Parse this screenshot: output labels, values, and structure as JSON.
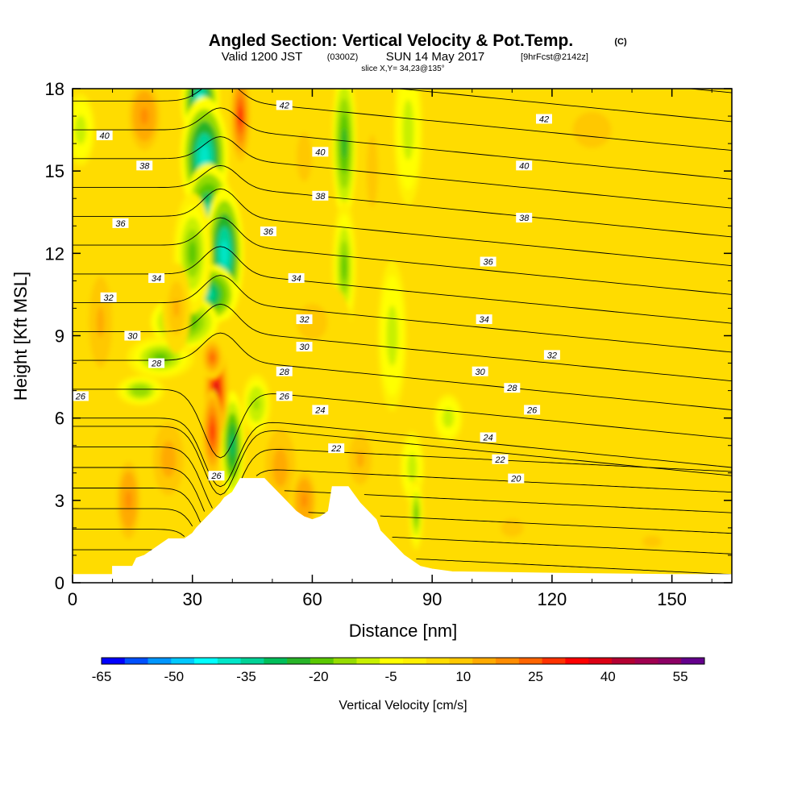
{
  "header": {
    "title": "Angled Section: Vertical Velocity & Pot.Temp.",
    "copyright": "(C)",
    "valid_prefix": "Valid 1200 JST",
    "valid_utc": "(0300Z)",
    "valid_date": "SUN 14 May 2017",
    "forecast_info": "[9hrFcst@2142z]",
    "slice_info": "slice X,Y= 34,23@135°"
  },
  "chart_data": {
    "type": "heatmap",
    "title": "Angled Section: Vertical Velocity & Pot.Temp.",
    "xlabel": "Distance [nm]",
    "ylabel": "Height [Kft MSL]",
    "xlim": [
      0,
      165
    ],
    "ylim": [
      0,
      18
    ],
    "x_ticks": [
      "0",
      "30",
      "60",
      "90",
      "120",
      "150"
    ],
    "y_ticks": [
      "0",
      "3",
      "6",
      "9",
      "12",
      "15",
      "18"
    ],
    "field_shaded": "Vertical Velocity [cm/s]",
    "field_contoured": "Potential Temperature",
    "background_value": 5,
    "colorbar": {
      "label": "Vertical Velocity [cm/s]",
      "tick_labels": [
        "-65",
        "-50",
        "-35",
        "-20",
        "-5",
        "10",
        "25",
        "40",
        "55"
      ],
      "levels": [
        -65,
        -60,
        -55,
        -50,
        -45,
        -40,
        -35,
        -30,
        -25,
        -20,
        -15,
        -10,
        -5,
        0,
        5,
        10,
        15,
        20,
        25,
        30,
        35,
        40,
        45,
        50,
        55,
        60
      ],
      "colors": [
        "#0000ff",
        "#0050ff",
        "#0096ff",
        "#00c8ff",
        "#00ffff",
        "#00e6c8",
        "#00d296",
        "#00be5a",
        "#28b428",
        "#5ac800",
        "#96dc00",
        "#c8f000",
        "#ffff00",
        "#fff000",
        "#ffdc00",
        "#ffc800",
        "#ffaa00",
        "#ff8c00",
        "#ff6400",
        "#ff3200",
        "#ff0000",
        "#dc0014",
        "#b40032",
        "#a00050",
        "#8c0064",
        "#64008c"
      ]
    },
    "terrain_kft": [
      [
        0,
        0.3
      ],
      [
        5,
        0.3
      ],
      [
        10,
        0.3
      ],
      [
        10,
        0.6
      ],
      [
        15,
        0.6
      ],
      [
        16,
        0.9
      ],
      [
        18,
        1.0
      ],
      [
        20,
        1.2
      ],
      [
        22,
        1.4
      ],
      [
        24,
        1.6
      ],
      [
        26,
        1.6
      ],
      [
        28,
        1.6
      ],
      [
        30,
        1.8
      ],
      [
        31,
        2.0
      ],
      [
        33,
        2.3
      ],
      [
        35,
        2.6
      ],
      [
        37,
        2.9
      ],
      [
        38,
        3.1
      ],
      [
        40,
        3.3
      ],
      [
        42,
        3.8
      ],
      [
        48,
        3.8
      ],
      [
        50,
        3.5
      ],
      [
        52,
        3.2
      ],
      [
        54,
        2.9
      ],
      [
        56,
        2.6
      ],
      [
        58,
        2.4
      ],
      [
        60,
        2.3
      ],
      [
        62,
        2.4
      ],
      [
        64,
        2.6
      ],
      [
        65,
        3.5
      ],
      [
        69,
        3.5
      ],
      [
        70,
        3.3
      ],
      [
        72,
        2.9
      ],
      [
        74,
        2.6
      ],
      [
        76,
        2.3
      ],
      [
        77,
        1.9
      ],
      [
        79,
        1.6
      ],
      [
        81,
        1.3
      ],
      [
        83,
        1.0
      ],
      [
        85,
        0.8
      ],
      [
        87,
        0.6
      ],
      [
        90,
        0.5
      ],
      [
        95,
        0.4
      ],
      [
        120,
        0.35
      ],
      [
        150,
        0.3
      ],
      [
        165,
        0.3
      ]
    ],
    "velocity_cells": [
      {
        "x": 32,
        "y": 17.5,
        "sx": 4,
        "sy": 1.4,
        "v": -45
      },
      {
        "x": 33,
        "y": 15.5,
        "sx": 5,
        "sy": 2.0,
        "v": -40
      },
      {
        "x": 34,
        "y": 13.5,
        "sx": 5,
        "sy": 1.6,
        "v": -35
      },
      {
        "x": 38,
        "y": 12.0,
        "sx": 4,
        "sy": 2.2,
        "v": -40
      },
      {
        "x": 34,
        "y": 10.5,
        "sx": 6,
        "sy": 1.0,
        "v": -35
      },
      {
        "x": 28,
        "y": 9.5,
        "sx": 7,
        "sy": 0.9,
        "v": -25
      },
      {
        "x": 22,
        "y": 8.2,
        "sx": 7,
        "sy": 0.7,
        "v": -20
      },
      {
        "x": 17,
        "y": 7.0,
        "sx": 5,
        "sy": 0.5,
        "v": -15
      },
      {
        "x": 30,
        "y": 12.0,
        "sx": 4,
        "sy": 2.0,
        "v": -20
      },
      {
        "x": 40,
        "y": 5.0,
        "sx": 2.5,
        "sy": 1.8,
        "v": -30
      },
      {
        "x": 46,
        "y": 6.5,
        "sx": 3,
        "sy": 1.0,
        "v": -12
      },
      {
        "x": 68,
        "y": 16.0,
        "sx": 2.5,
        "sy": 2.5,
        "v": -25
      },
      {
        "x": 68,
        "y": 11.5,
        "sx": 2.5,
        "sy": 2.2,
        "v": -20
      },
      {
        "x": 80,
        "y": 9.0,
        "sx": 3,
        "sy": 2.5,
        "v": -10
      },
      {
        "x": 84,
        "y": 16.5,
        "sx": 3,
        "sy": 2.5,
        "v": -10
      },
      {
        "x": 2,
        "y": 16.5,
        "sx": 3,
        "sy": 1.2,
        "v": -8
      },
      {
        "x": 85,
        "y": 4.2,
        "sx": 2.5,
        "sy": 1.2,
        "v": -10
      },
      {
        "x": 86,
        "y": 2.5,
        "sx": 1.5,
        "sy": 1.2,
        "v": -20
      },
      {
        "x": 94,
        "y": 6.0,
        "sx": 3,
        "sy": 0.8,
        "v": -8
      },
      {
        "x": 36,
        "y": 7.0,
        "sx": 2.5,
        "sy": 1.6,
        "v": 42
      },
      {
        "x": 35,
        "y": 5.5,
        "sx": 2,
        "sy": 1.4,
        "v": 32
      },
      {
        "x": 35,
        "y": 8.2,
        "sx": 2.5,
        "sy": 0.7,
        "v": 28
      },
      {
        "x": 42,
        "y": 17.0,
        "sx": 2,
        "sy": 1.5,
        "v": 35
      },
      {
        "x": 18,
        "y": 17.0,
        "sx": 4,
        "sy": 1.4,
        "v": 22
      },
      {
        "x": 26,
        "y": 10.0,
        "sx": 3,
        "sy": 1.5,
        "v": 15
      },
      {
        "x": 7,
        "y": 9.5,
        "sx": 4,
        "sy": 2.5,
        "v": 15
      },
      {
        "x": 14,
        "y": 3.0,
        "sx": 3,
        "sy": 1.6,
        "v": 22
      },
      {
        "x": 24,
        "y": 4.5,
        "sx": 4,
        "sy": 1.5,
        "v": 18
      },
      {
        "x": 52,
        "y": 4.2,
        "sx": 4,
        "sy": 1.6,
        "v": 18
      },
      {
        "x": 58,
        "y": 3.0,
        "sx": 3,
        "sy": 1.2,
        "v": 22
      },
      {
        "x": 72,
        "y": 4.5,
        "sx": 4,
        "sy": 1.4,
        "v": 15
      },
      {
        "x": 60,
        "y": 9.5,
        "sx": 8,
        "sy": 1.5,
        "v": 12
      },
      {
        "x": 58,
        "y": 15.5,
        "sx": 4,
        "sy": 2.0,
        "v": 12
      },
      {
        "x": 75,
        "y": 15.0,
        "sx": 3,
        "sy": 3.0,
        "v": 12
      },
      {
        "x": 130,
        "y": 16.5,
        "sx": 10,
        "sy": 1.5,
        "v": 12
      },
      {
        "x": 110,
        "y": 2.0,
        "sx": 12,
        "sy": 1.5,
        "v": 10
      },
      {
        "x": 145,
        "y": 1.5,
        "sx": 10,
        "sy": 1.0,
        "v": 10
      }
    ],
    "theta_contours": [
      {
        "value": 20,
        "label_at": [
          111,
          3.8
        ]
      },
      {
        "value": 22,
        "label_at": [
          107,
          4.5
        ]
      },
      {
        "value": 22,
        "label_at": [
          66,
          4.9
        ]
      },
      {
        "value": 24,
        "label_at": [
          62,
          6.3
        ]
      },
      {
        "value": 24,
        "label_at": [
          104,
          5.3
        ]
      },
      {
        "value": 26,
        "label_at": [
          2,
          6.8
        ]
      },
      {
        "value": 26,
        "label_at": [
          36,
          3.9
        ]
      },
      {
        "value": 26,
        "label_at": [
          53,
          6.8
        ]
      },
      {
        "value": 26,
        "label_at": [
          115,
          6.3
        ]
      },
      {
        "value": 28,
        "label_at": [
          21,
          8.0
        ]
      },
      {
        "value": 28,
        "label_at": [
          53,
          7.7
        ]
      },
      {
        "value": 28,
        "label_at": [
          110,
          7.1
        ]
      },
      {
        "value": 30,
        "label_at": [
          15,
          9.0
        ]
      },
      {
        "value": 30,
        "label_at": [
          58,
          8.6
        ]
      },
      {
        "value": 30,
        "label_at": [
          102,
          7.7
        ]
      },
      {
        "value": 32,
        "label_at": [
          9,
          10.4
        ]
      },
      {
        "value": 32,
        "label_at": [
          58,
          9.6
        ]
      },
      {
        "value": 32,
        "label_at": [
          120,
          8.3
        ]
      },
      {
        "value": 34,
        "label_at": [
          21,
          11.1
        ]
      },
      {
        "value": 34,
        "label_at": [
          56,
          11.1
        ]
      },
      {
        "value": 34,
        "label_at": [
          103,
          9.6
        ]
      },
      {
        "value": 36,
        "label_at": [
          12,
          13.1
        ]
      },
      {
        "value": 36,
        "label_at": [
          49,
          12.8
        ]
      },
      {
        "value": 36,
        "label_at": [
          104,
          11.7
        ]
      },
      {
        "value": 38,
        "label_at": [
          18,
          15.2
        ]
      },
      {
        "value": 38,
        "label_at": [
          62,
          14.1
        ]
      },
      {
        "value": 38,
        "label_at": [
          113,
          13.3
        ]
      },
      {
        "value": 40,
        "label_at": [
          8,
          16.3
        ]
      },
      {
        "value": 40,
        "label_at": [
          62,
          15.7
        ]
      },
      {
        "value": 40,
        "label_at": [
          113,
          15.2
        ]
      },
      {
        "value": 42,
        "label_at": [
          53,
          17.4
        ]
      },
      {
        "value": 42,
        "label_at": [
          118,
          16.9
        ]
      }
    ]
  }
}
